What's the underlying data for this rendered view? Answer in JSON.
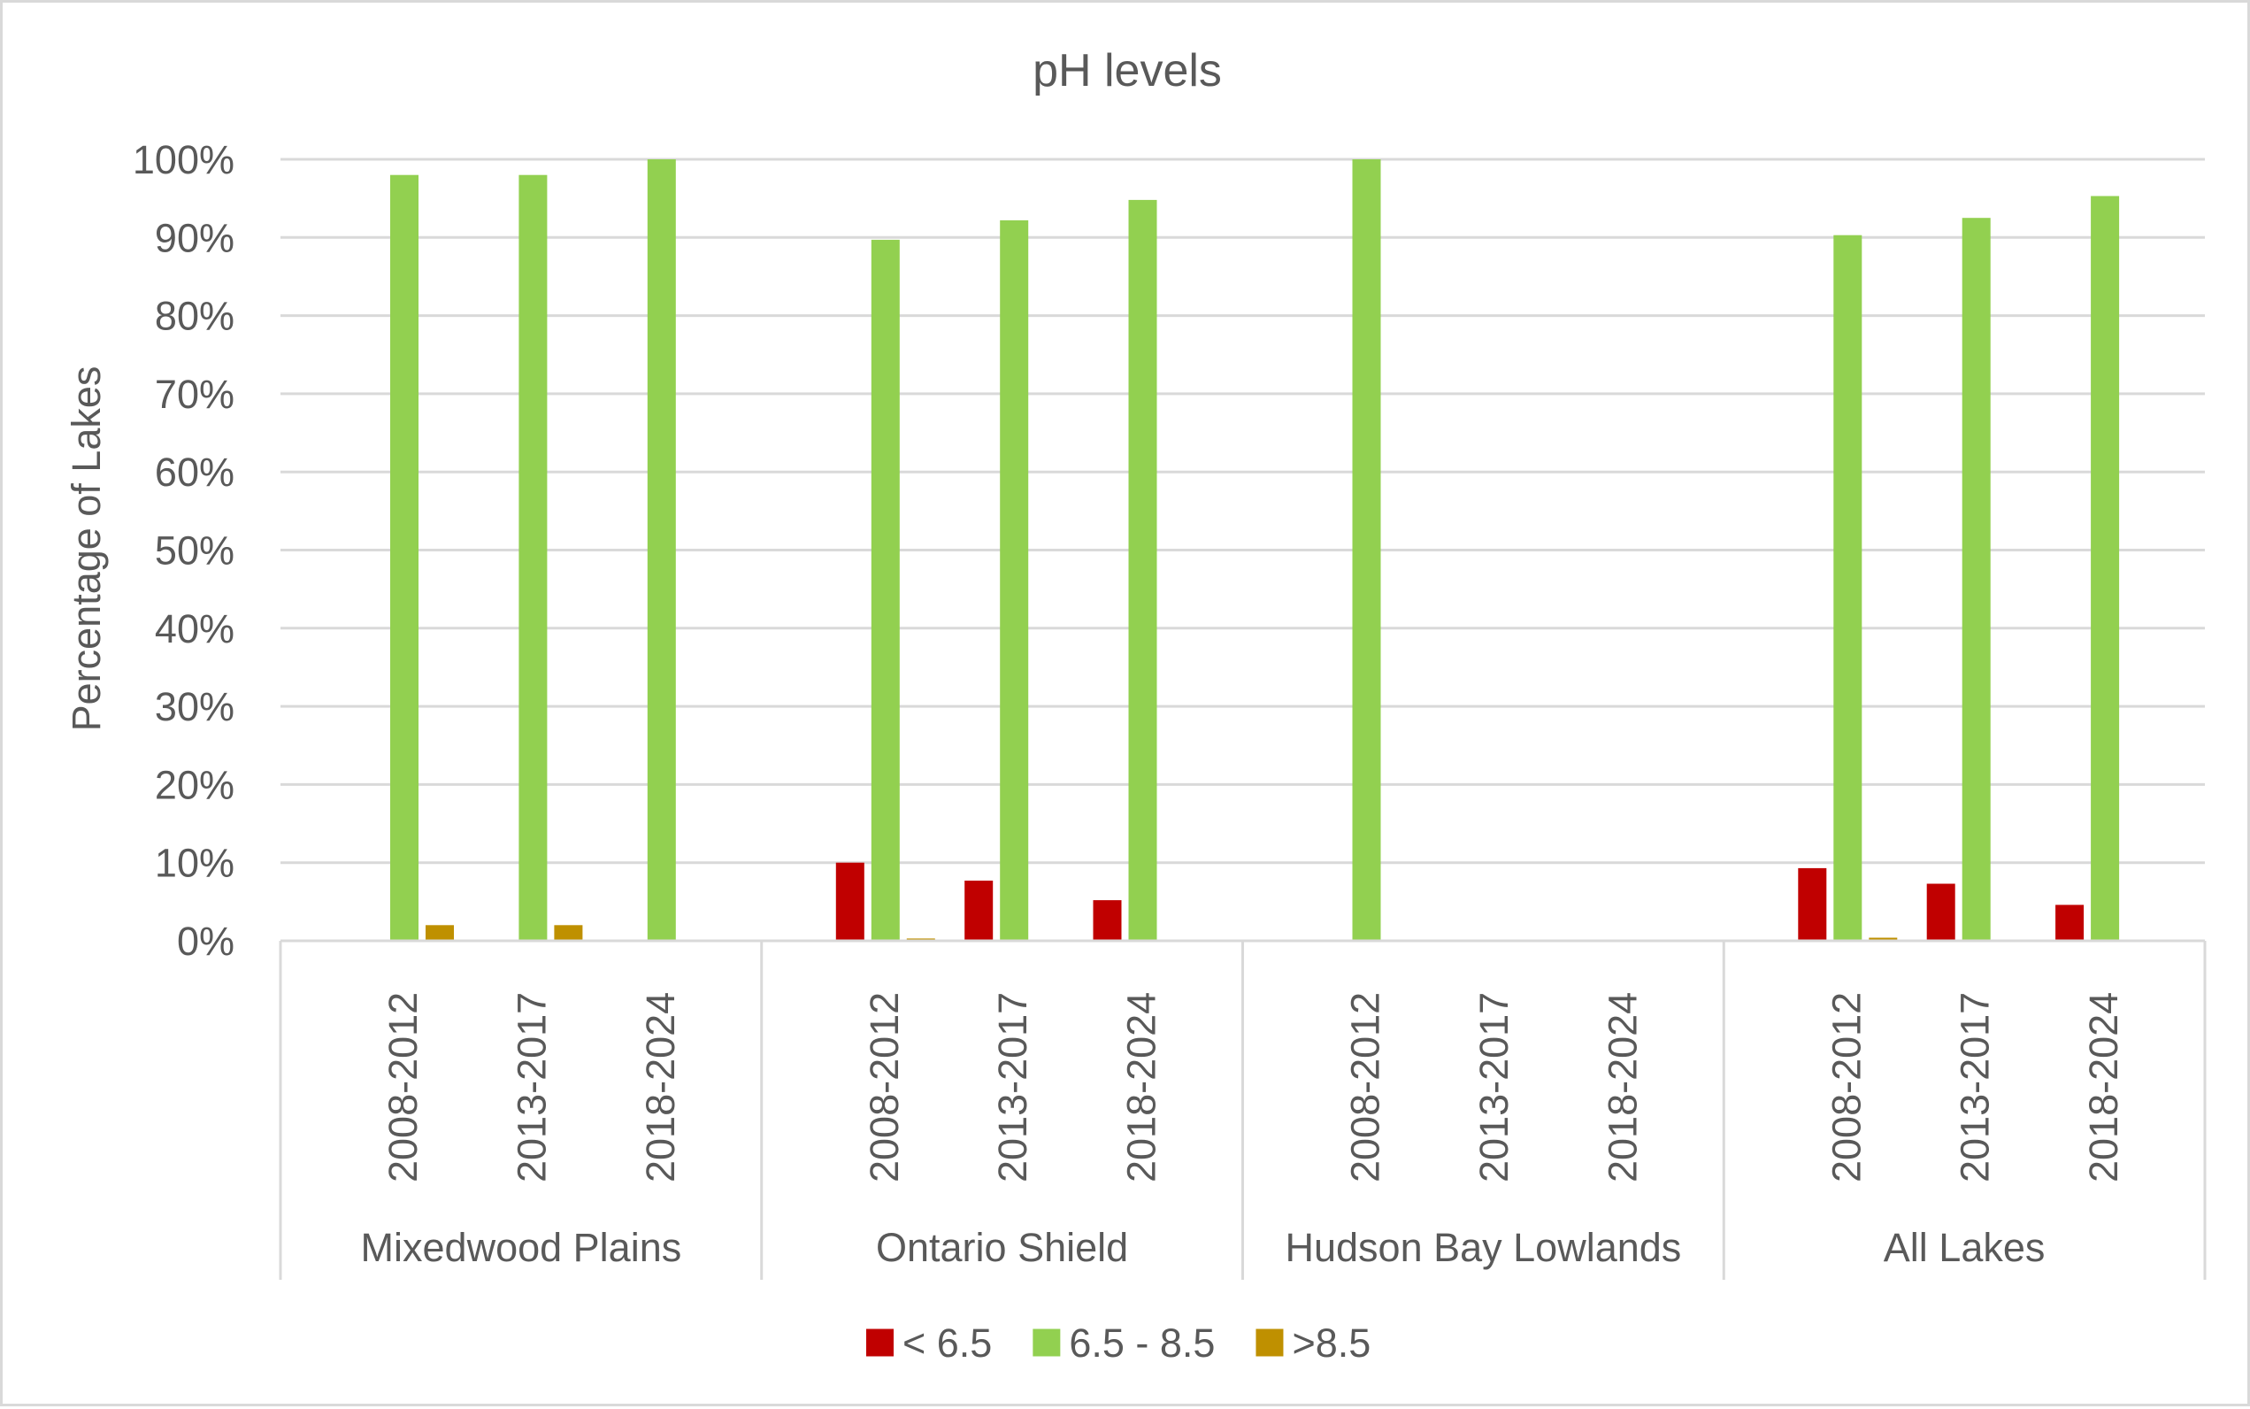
{
  "chart_data": {
    "type": "bar",
    "title": "pH levels",
    "xlabel": "",
    "ylabel": "Percentage of Lakes",
    "ylim": [
      0,
      100
    ],
    "y_ticks": [
      "0%",
      "10%",
      "20%",
      "30%",
      "40%",
      "50%",
      "60%",
      "70%",
      "80%",
      "90%",
      "100%"
    ],
    "y_tick_values": [
      0,
      10,
      20,
      30,
      40,
      50,
      60,
      70,
      80,
      90,
      100
    ],
    "grid": true,
    "legend_position": "bottom",
    "groups": [
      "Mixedwood Plains",
      "Ontario Shield",
      "Hudson Bay Lowlands",
      "All Lakes"
    ],
    "periods": [
      "2008-2012",
      "2013-2017",
      "2018-2024"
    ],
    "categories": [
      "Mixedwood Plains 2008-2012",
      "Mixedwood Plains 2013-2017",
      "Mixedwood Plains 2018-2024",
      "Ontario Shield 2008-2012",
      "Ontario Shield 2013-2017",
      "Ontario Shield 2018-2024",
      "Hudson Bay Lowlands 2008-2012",
      "Hudson Bay Lowlands 2013-2017",
      "Hudson Bay Lowlands 2018-2024",
      "All Lakes 2008-2012",
      "All Lakes 2013-2017",
      "All Lakes 2018-2024"
    ],
    "series": [
      {
        "name": "< 6.5",
        "color": "#c00000",
        "values": [
          0,
          0,
          0,
          10.0,
          7.7,
          5.2,
          0,
          null,
          null,
          9.3,
          7.3,
          4.6
        ]
      },
      {
        "name": "6.5 - 8.5",
        "color": "#92d050",
        "values": [
          98.0,
          98.0,
          100.0,
          89.7,
          92.2,
          94.8,
          100.0,
          null,
          null,
          90.3,
          92.5,
          95.3
        ]
      },
      {
        "name": ">8.5",
        "color": "#bf9000",
        "values": [
          2.0,
          2.0,
          0,
          0.3,
          0,
          0,
          0,
          null,
          null,
          0.4,
          0,
          0
        ]
      }
    ]
  }
}
